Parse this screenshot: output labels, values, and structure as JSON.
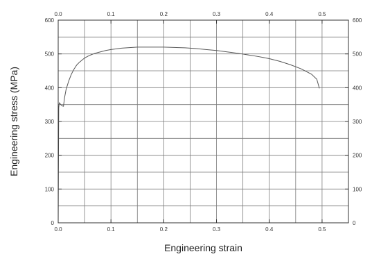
{
  "chart_data": {
    "type": "line",
    "title": "",
    "xlabel": "Engineering strain",
    "ylabel": "Engineering stress (MPa)",
    "xlim": [
      0.0,
      0.55
    ],
    "ylim": [
      0,
      600
    ],
    "x_ticks": [
      0.0,
      0.1,
      0.2,
      0.3,
      0.4,
      0.5
    ],
    "x_tick_labels_bottom": [
      "0.0",
      "0.1",
      "0.2",
      "0.3",
      "0.4",
      "0.5"
    ],
    "x_tick_labels_top": [
      "0.0",
      "0.1",
      "0.2",
      "0.3",
      "0.4",
      "0.5"
    ],
    "y_ticks": [
      0,
      100,
      200,
      300,
      400,
      500,
      600
    ],
    "y_tick_labels_left": [
      "0",
      "100",
      "200",
      "300",
      "400",
      "500",
      "600"
    ],
    "y_tick_labels_right": [
      "0",
      "100",
      "200",
      "300",
      "400",
      "500",
      "600"
    ],
    "grid": true,
    "legend": "none",
    "colors": {
      "line": "#555555",
      "grid": "#7a7a7a",
      "frame": "#333333"
    },
    "series": [
      {
        "x": [
          0.0,
          0.001,
          0.002,
          0.004,
          0.006,
          0.008,
          0.01,
          0.012,
          0.015,
          0.02,
          0.025,
          0.03,
          0.035,
          0.04,
          0.05,
          0.06,
          0.07,
          0.08,
          0.09,
          0.1,
          0.12,
          0.14,
          0.15,
          0.17,
          0.2,
          0.22,
          0.24,
          0.26,
          0.28,
          0.3,
          0.32,
          0.34,
          0.36,
          0.38,
          0.4,
          0.42,
          0.44,
          0.46,
          0.48,
          0.49,
          0.495
        ],
        "y": [
          0,
          340,
          355,
          352,
          348,
          346,
          345,
          370,
          395,
          420,
          440,
          455,
          467,
          475,
          488,
          496,
          502,
          506,
          510,
          513,
          517,
          519,
          520,
          520,
          520,
          519,
          518,
          516,
          513,
          510,
          506,
          502,
          497,
          492,
          486,
          478,
          468,
          456,
          440,
          425,
          398
        ]
      }
    ]
  }
}
